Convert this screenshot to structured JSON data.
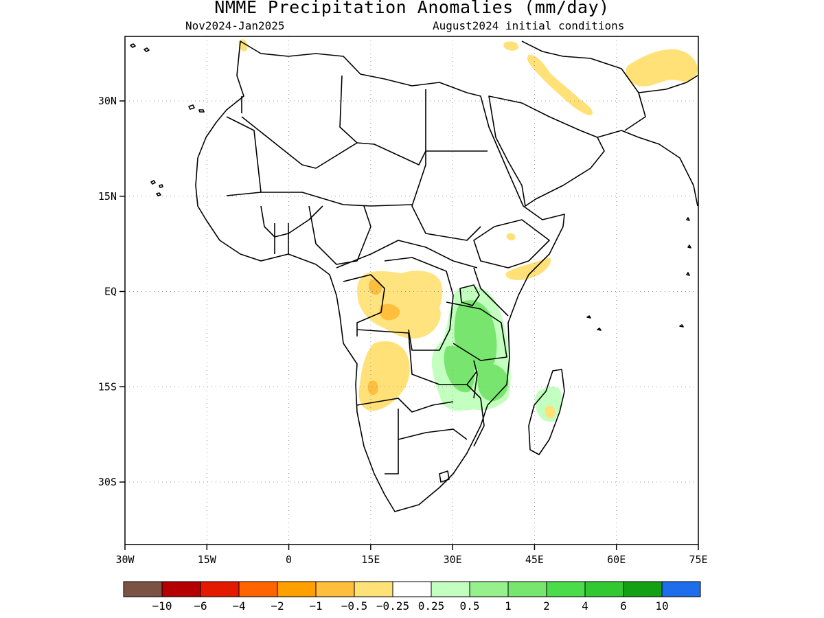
{
  "header": {
    "title": "NMME Precipitation Anomalies (mm/day)",
    "period": "Nov2024-Jan2025",
    "init": "August2024 initial conditions"
  },
  "axes": {
    "lat_labels": [
      "30N",
      "15N",
      "EQ",
      "15S",
      "30S"
    ],
    "lon_labels": [
      "30W",
      "15W",
      "0",
      "15E",
      "30E",
      "45E",
      "60E",
      "75E"
    ],
    "lat_values": [
      30,
      15,
      0,
      -15,
      -30
    ],
    "lon_values": [
      -30,
      -15,
      0,
      15,
      30,
      45,
      60,
      75
    ],
    "lon_range": [
      -30,
      75
    ],
    "lat_range": [
      -40,
      40
    ],
    "grid": "dotted"
  },
  "colorbar": {
    "colors": [
      "#7b5244",
      "#b40000",
      "#e31a00",
      "#ff6400",
      "#ffa000",
      "#ffbe3c",
      "#ffe178",
      "#ffffff",
      "#c3ffbe",
      "#96f08c",
      "#78e66e",
      "#4bdc4b",
      "#32c832",
      "#14a014",
      "#1e6eeb"
    ],
    "labels": [
      "-10",
      "-6",
      "-4",
      "-2",
      "-1",
      "-0.5",
      "-0.25",
      "0.25",
      "0.5",
      "1",
      "2",
      "4",
      "6",
      "10"
    ]
  },
  "chart_data": {
    "type": "heatmap",
    "title": "NMME Precipitation Anomalies (mm/day)",
    "xlabel": "",
    "ylabel": "",
    "xlim": [
      -30,
      75
    ],
    "ylim": [
      -40,
      40
    ],
    "regions": [
      {
        "area": "Central Africa (Gabon/Congo)",
        "category": "-0.5 to -0.25",
        "sign": "dry"
      },
      {
        "area": "Congo interior",
        "category": "-1 to -0.5",
        "sign": "dry"
      },
      {
        "area": "Angola",
        "category": "-0.5 to -0.25",
        "sign": "dry"
      },
      {
        "area": "Tanzania / Lake Victoria",
        "category": "0.5 to 2",
        "sign": "wet"
      },
      {
        "area": "Malawi / Mozambique",
        "category": "0.5 to 2",
        "sign": "wet"
      },
      {
        "area": "Madagascar",
        "category": "0.25 to 1",
        "sign": "wet"
      },
      {
        "area": "Red Sea coast / Arabia",
        "category": "-0.5 to -0.25",
        "sign": "dry"
      },
      {
        "area": "Iran / Afghanistan",
        "category": "-0.5 to -0.25",
        "sign": "dry"
      },
      {
        "area": "Somalia / Kenya coast",
        "category": "-0.5 to -0.25",
        "sign": "dry"
      }
    ]
  }
}
